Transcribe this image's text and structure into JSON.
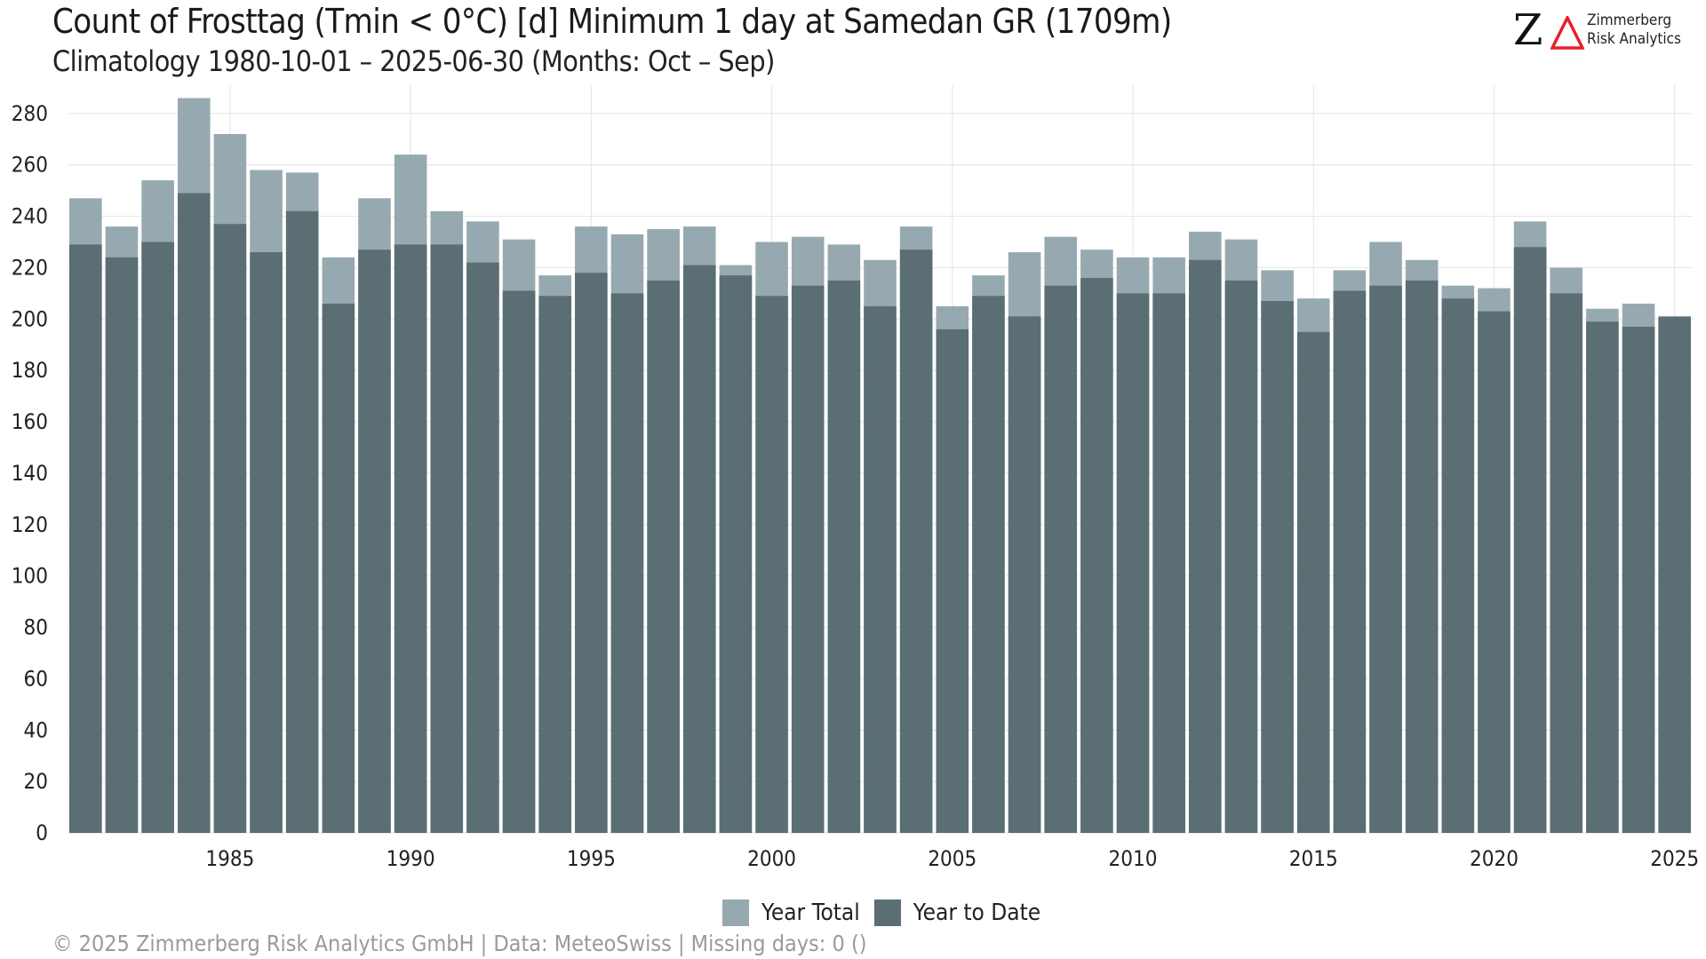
{
  "title": "Count of Frosttag (Tmin < 0°C) [d] Minimum 1 day at Samedan  GR (1709m)",
  "subtitle": "Climatology 1980-10-01 – 2025-06-30 (Months: Oct – Sep)",
  "logo": {
    "mark": "Z",
    "line1": "Zimmerberg",
    "line2": "Risk Analytics"
  },
  "footer": "©  2025 Zimmerberg Risk Analytics GmbH | Data: MeteoSwiss | Missing days: 0 ()",
  "colors": {
    "year_total": "#97a9b0",
    "year_to_date": "#5a6e74",
    "logo_accent": "#e8202a",
    "grid": "#e4e4e4"
  },
  "chart_data": {
    "type": "bar",
    "categories": [
      1981,
      1982,
      1983,
      1984,
      1985,
      1986,
      1987,
      1988,
      1989,
      1990,
      1991,
      1992,
      1993,
      1994,
      1995,
      1996,
      1997,
      1998,
      1999,
      2000,
      2001,
      2002,
      2003,
      2004,
      2005,
      2006,
      2007,
      2008,
      2009,
      2010,
      2011,
      2012,
      2013,
      2014,
      2015,
      2016,
      2017,
      2018,
      2019,
      2020,
      2021,
      2022,
      2023,
      2024,
      2025
    ],
    "x_ticks": [
      1985,
      1990,
      1995,
      2000,
      2005,
      2010,
      2015,
      2020,
      2025
    ],
    "y_ticks": [
      0,
      20,
      40,
      60,
      80,
      100,
      120,
      140,
      160,
      180,
      200,
      220,
      240,
      260,
      280
    ],
    "ylim": [
      0,
      291
    ],
    "grid": true,
    "legend_position": "bottom",
    "series": [
      {
        "name": "Year Total",
        "values": [
          247,
          236,
          254,
          286,
          272,
          258,
          257,
          224,
          247,
          264,
          242,
          238,
          231,
          217,
          236,
          233,
          235,
          236,
          221,
          230,
          232,
          229,
          223,
          236,
          205,
          217,
          226,
          232,
          227,
          224,
          224,
          234,
          231,
          219,
          208,
          219,
          230,
          223,
          213,
          212,
          238,
          220,
          204,
          206,
          201
        ]
      },
      {
        "name": "Year to Date",
        "values": [
          229,
          224,
          230,
          249,
          237,
          226,
          242,
          206,
          227,
          229,
          229,
          222,
          211,
          209,
          218,
          210,
          215,
          221,
          217,
          209,
          213,
          215,
          205,
          227,
          196,
          209,
          201,
          213,
          216,
          210,
          210,
          223,
          215,
          207,
          195,
          211,
          213,
          215,
          208,
          203,
          228,
          210,
          199,
          197,
          201
        ]
      }
    ]
  }
}
